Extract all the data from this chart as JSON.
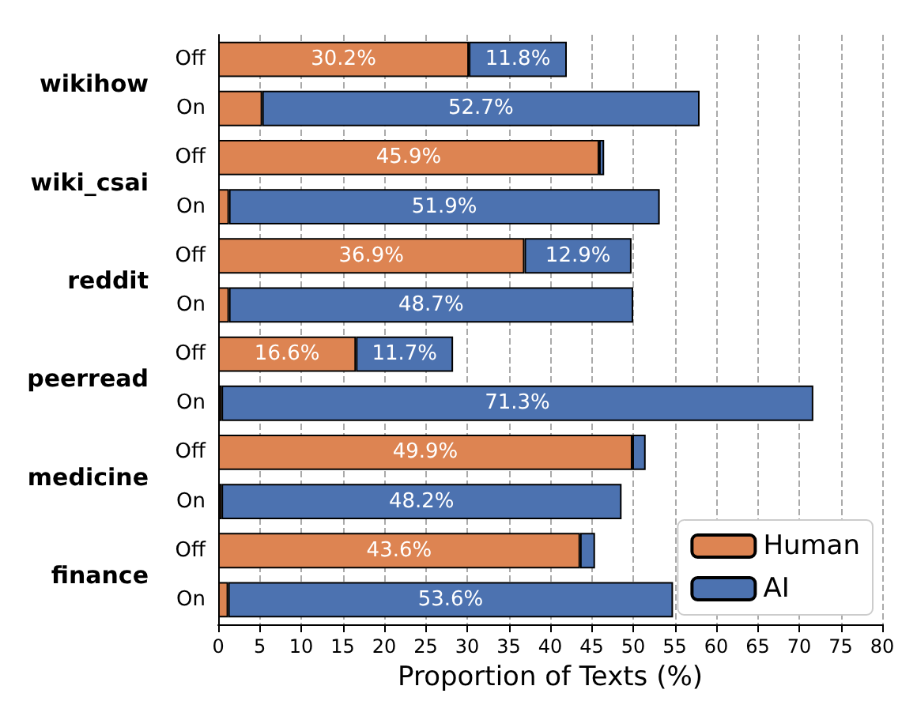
{
  "chart_data": {
    "type": "bar",
    "orientation": "horizontal",
    "stacked": true,
    "categories": [
      "Off",
      "On",
      "Off",
      "On",
      "Off",
      "On",
      "Off",
      "On",
      "Off",
      "On",
      "Off",
      "On"
    ],
    "annotations": [
      "wikihow",
      "wiki_csai",
      "reddit",
      "peerread",
      "medicine",
      "finance"
    ],
    "series": [
      {
        "name": "Human",
        "color": "#dd8452",
        "values": [
          30.2,
          5.3,
          45.9,
          1.3,
          36.9,
          1.3,
          16.6,
          0.4,
          49.9,
          0.4,
          43.6,
          1.2
        ],
        "value_labels": [
          "30.2%",
          null,
          "45.9%",
          null,
          "36.9%",
          null,
          "16.6%",
          null,
          "49.9%",
          null,
          "43.6%",
          null
        ]
      },
      {
        "name": "AI",
        "color": "#4c72b0",
        "values": [
          11.8,
          52.7,
          0.6,
          51.9,
          12.9,
          48.7,
          11.7,
          71.3,
          1.6,
          48.2,
          1.8,
          53.6
        ],
        "value_labels": [
          "11.8%",
          "52.7%",
          null,
          "51.9%",
          "12.9%",
          "48.7%",
          "11.7%",
          "71.3%",
          null,
          "48.2%",
          null,
          "53.6%"
        ]
      }
    ],
    "xlabel": "Proportion of Texts (%)",
    "xlim": [
      0,
      80
    ],
    "xticks": [
      0,
      5,
      10,
      15,
      20,
      25,
      30,
      35,
      40,
      45,
      50,
      55,
      60,
      65,
      70,
      75,
      80
    ],
    "grid": "x",
    "legend": "bottom right"
  }
}
